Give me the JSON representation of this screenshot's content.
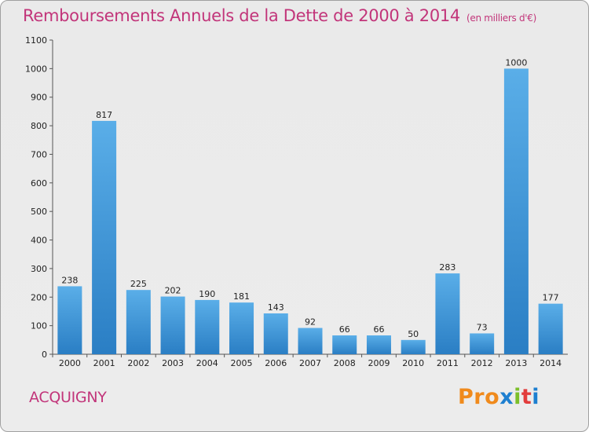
{
  "header": {
    "title": "Remboursements Annuels de la Dette de 2000 à 2014",
    "unit": "(en milliers d'€)"
  },
  "footer": {
    "commune": "ACQUIGNY",
    "logo_letters": [
      "P",
      "r",
      "o",
      "x",
      "i",
      "t",
      "i"
    ]
  },
  "colors": {
    "title": "#c2357a",
    "bar_top": "#5aaee8",
    "bar_bottom": "#2a7ec4",
    "logo": [
      "#f08a1c",
      "#f08a1c",
      "#f08a1c",
      "#1e7fd0",
      "#7cbf2a",
      "#e23c3c",
      "#1e7fd0"
    ]
  },
  "chart_data": {
    "type": "bar",
    "title": "Remboursements Annuels de la Dette de 2000 à 2014",
    "categories": [
      "2000",
      "2001",
      "2002",
      "2003",
      "2004",
      "2005",
      "2006",
      "2007",
      "2008",
      "2009",
      "2010",
      "2011",
      "2012",
      "2013",
      "2014"
    ],
    "values": [
      238,
      817,
      225,
      202,
      190,
      181,
      143,
      92,
      66,
      66,
      50,
      283,
      73,
      1000,
      177
    ],
    "ylim": [
      0,
      1100
    ],
    "yticks": [
      0,
      100,
      200,
      300,
      400,
      500,
      600,
      700,
      800,
      900,
      1000,
      1100
    ],
    "xlabel": "",
    "ylabel": "",
    "grid": false,
    "legend": "none"
  }
}
